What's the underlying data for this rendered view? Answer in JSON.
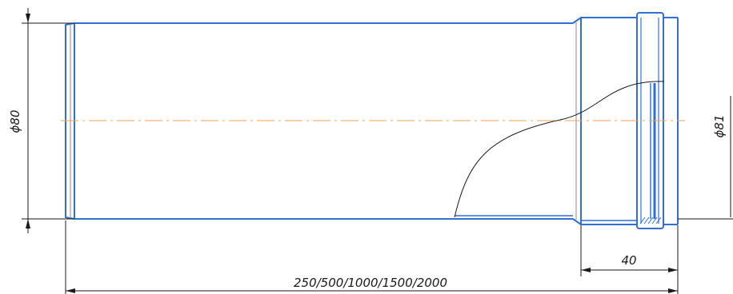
{
  "dimensions": {
    "diameter_left": "ϕ80",
    "diameter_right": "ϕ81",
    "socket_length": "40",
    "total_length": "250/500/1000/1500/2000"
  },
  "colors": {
    "outline": "#2f6fd6",
    "thin_line": "#1a1a1a",
    "centerline": "#f0a050",
    "background": "#ffffff"
  }
}
